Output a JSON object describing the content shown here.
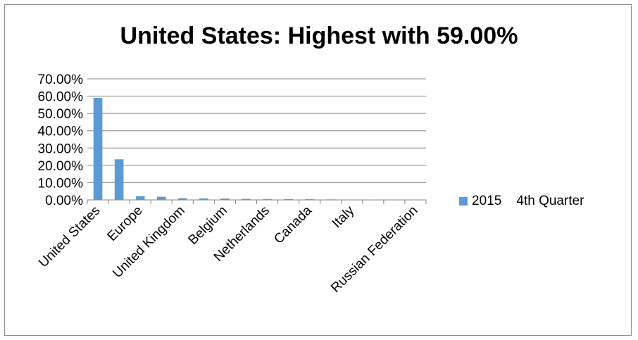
{
  "chart_data": {
    "type": "bar",
    "title": "United States: Highest with 59.00%",
    "categories": [
      "United States",
      "",
      "Europe",
      "",
      "United Kingdom",
      "",
      "Belgium",
      "",
      "Netherlands",
      "",
      "Canada",
      "",
      "Italy",
      "",
      "",
      "Russian Federation"
    ],
    "series": [
      {
        "name": "2015    4th Quarter",
        "values": [
          59.0,
          23.5,
          2.2,
          1.8,
          1.0,
          0.9,
          0.8,
          0.6,
          0.5,
          0.5,
          0.4,
          0.3,
          0.2,
          0.15,
          0.1,
          0.05
        ]
      }
    ],
    "yticks": [
      "0.00%",
      "10.00%",
      "20.00%",
      "30.00%",
      "40.00%",
      "50.00%",
      "60.00%",
      "70.00%"
    ],
    "ylim": [
      0,
      70
    ],
    "grid": true,
    "legend_position": "right",
    "colors": {
      "bar": "#5b9bd5",
      "grid": "#868686",
      "axis": "#868686"
    }
  }
}
